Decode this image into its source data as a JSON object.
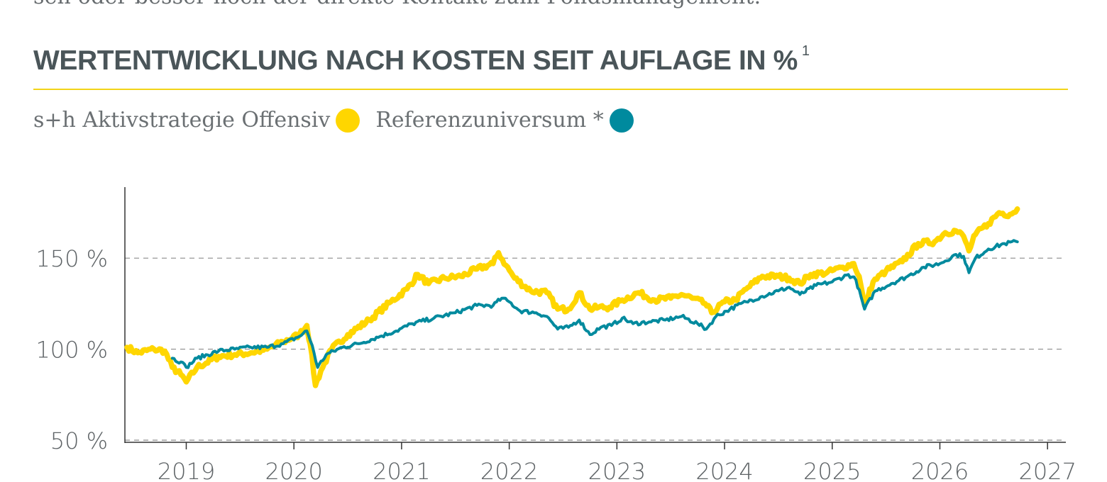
{
  "intro_text": "sen oder besser noch der direkte Kontakt zum Fondsmanagement.",
  "title": "WERTENTWICKLUNG NACH KOSTEN SEIT AUFLAGE IN %",
  "title_sup": "1",
  "colors": {
    "accent": "#f2d418",
    "series_fund": "#ffd600",
    "series_reference": "#008a9e",
    "text": "#4a5559"
  },
  "chart_data": {
    "type": "line",
    "title": "WERTENTWICKLUNG NACH KOSTEN SEIT AUFLAGE IN %",
    "xlabel": "",
    "ylabel": "",
    "xlim": [
      2018.43,
      2027.17
    ],
    "ylim": [
      50,
      189
    ],
    "grid": "horizontal dashed",
    "legend_position": "top-left",
    "y_ticks": [
      50,
      100,
      150
    ],
    "y_tick_labels": [
      "50 %",
      "100 %",
      "150 %"
    ],
    "x_ticks": [
      2019,
      2020,
      2021,
      2022,
      2023,
      2024,
      2025,
      2026,
      2027
    ],
    "x_tick_labels": [
      "2019",
      "2020",
      "2021",
      "2022",
      "2023",
      "2024",
      "2025",
      "2026",
      "2027"
    ],
    "series": [
      {
        "name": "s+h Aktivstrategie Offensiv",
        "color": "#ffd600",
        "points": [
          [
            2018.45,
            101
          ],
          [
            2018.55,
            98
          ],
          [
            2018.7,
            100
          ],
          [
            2018.8,
            99
          ],
          [
            2018.87,
            90
          ],
          [
            2018.95,
            86
          ],
          [
            2019.0,
            82
          ],
          [
            2019.1,
            90
          ],
          [
            2019.3,
            96
          ],
          [
            2019.45,
            97
          ],
          [
            2019.6,
            98
          ],
          [
            2019.75,
            100
          ],
          [
            2019.9,
            104
          ],
          [
            2020.05,
            108
          ],
          [
            2020.12,
            113
          ],
          [
            2020.15,
            103
          ],
          [
            2020.2,
            80
          ],
          [
            2020.25,
            88
          ],
          [
            2020.35,
            100
          ],
          [
            2020.5,
            108
          ],
          [
            2020.7,
            116
          ],
          [
            2020.9,
            126
          ],
          [
            2021.05,
            133
          ],
          [
            2021.15,
            141
          ],
          [
            2021.25,
            136
          ],
          [
            2021.4,
            139
          ],
          [
            2021.55,
            140
          ],
          [
            2021.7,
            144
          ],
          [
            2021.85,
            147
          ],
          [
            2021.9,
            153
          ],
          [
            2021.97,
            146
          ],
          [
            2022.05,
            139
          ],
          [
            2022.2,
            132
          ],
          [
            2022.35,
            131
          ],
          [
            2022.45,
            122
          ],
          [
            2022.55,
            122
          ],
          [
            2022.65,
            131
          ],
          [
            2022.75,
            122
          ],
          [
            2022.83,
            123
          ],
          [
            2022.93,
            123
          ],
          [
            2023.05,
            127
          ],
          [
            2023.2,
            131
          ],
          [
            2023.35,
            127
          ],
          [
            2023.5,
            128
          ],
          [
            2023.6,
            130
          ],
          [
            2023.7,
            128
          ],
          [
            2023.82,
            125
          ],
          [
            2023.88,
            120
          ],
          [
            2024.0,
            126
          ],
          [
            2024.1,
            127
          ],
          [
            2024.2,
            133
          ],
          [
            2024.35,
            140
          ],
          [
            2024.5,
            140
          ],
          [
            2024.6,
            139
          ],
          [
            2024.7,
            136
          ],
          [
            2024.8,
            141
          ],
          [
            2024.95,
            142
          ],
          [
            2025.1,
            145
          ],
          [
            2025.2,
            147
          ],
          [
            2025.25,
            140
          ],
          [
            2025.3,
            124
          ],
          [
            2025.38,
            137
          ],
          [
            2025.5,
            143
          ],
          [
            2025.65,
            148
          ],
          [
            2025.8,
            158
          ],
          [
            2025.95,
            159
          ],
          [
            2026.05,
            164
          ],
          [
            2026.15,
            165
          ],
          [
            2026.22,
            162
          ],
          [
            2026.27,
            154
          ],
          [
            2026.33,
            163
          ],
          [
            2026.45,
            169
          ],
          [
            2026.55,
            175
          ],
          [
            2026.65,
            174
          ],
          [
            2026.72,
            177
          ]
        ]
      },
      {
        "name": "Referenzuniversum *",
        "color": "#008a9e",
        "points": [
          [
            2018.87,
            95
          ],
          [
            2018.95,
            93
          ],
          [
            2019.0,
            90
          ],
          [
            2019.1,
            95
          ],
          [
            2019.3,
            99
          ],
          [
            2019.45,
            100
          ],
          [
            2019.6,
            101
          ],
          [
            2019.75,
            101
          ],
          [
            2019.9,
            103
          ],
          [
            2020.05,
            107
          ],
          [
            2020.12,
            110
          ],
          [
            2020.17,
            102
          ],
          [
            2020.22,
            90
          ],
          [
            2020.3,
            97
          ],
          [
            2020.45,
            101
          ],
          [
            2020.6,
            103
          ],
          [
            2020.8,
            107
          ],
          [
            2020.95,
            110
          ],
          [
            2021.1,
            114
          ],
          [
            2021.3,
            117
          ],
          [
            2021.5,
            120
          ],
          [
            2021.7,
            124
          ],
          [
            2021.85,
            124
          ],
          [
            2021.93,
            128
          ],
          [
            2022.0,
            126
          ],
          [
            2022.1,
            121
          ],
          [
            2022.25,
            120
          ],
          [
            2022.35,
            118
          ],
          [
            2022.45,
            111
          ],
          [
            2022.55,
            112
          ],
          [
            2022.65,
            116
          ],
          [
            2022.75,
            108
          ],
          [
            2022.85,
            112
          ],
          [
            2022.95,
            113
          ],
          [
            2023.05,
            117
          ],
          [
            2023.15,
            114
          ],
          [
            2023.3,
            115
          ],
          [
            2023.45,
            116
          ],
          [
            2023.6,
            118
          ],
          [
            2023.75,
            114
          ],
          [
            2023.83,
            111
          ],
          [
            2023.92,
            118
          ],
          [
            2024.05,
            122
          ],
          [
            2024.2,
            126
          ],
          [
            2024.35,
            129
          ],
          [
            2024.5,
            132
          ],
          [
            2024.6,
            134
          ],
          [
            2024.7,
            130
          ],
          [
            2024.85,
            135
          ],
          [
            2025.0,
            137
          ],
          [
            2025.15,
            141
          ],
          [
            2025.22,
            138
          ],
          [
            2025.3,
            122
          ],
          [
            2025.4,
            132
          ],
          [
            2025.55,
            136
          ],
          [
            2025.7,
            140
          ],
          [
            2025.85,
            145
          ],
          [
            2026.0,
            147
          ],
          [
            2026.15,
            152
          ],
          [
            2026.22,
            151
          ],
          [
            2026.27,
            142
          ],
          [
            2026.33,
            150
          ],
          [
            2026.45,
            155
          ],
          [
            2026.6,
            158
          ],
          [
            2026.72,
            159
          ]
        ]
      }
    ]
  }
}
